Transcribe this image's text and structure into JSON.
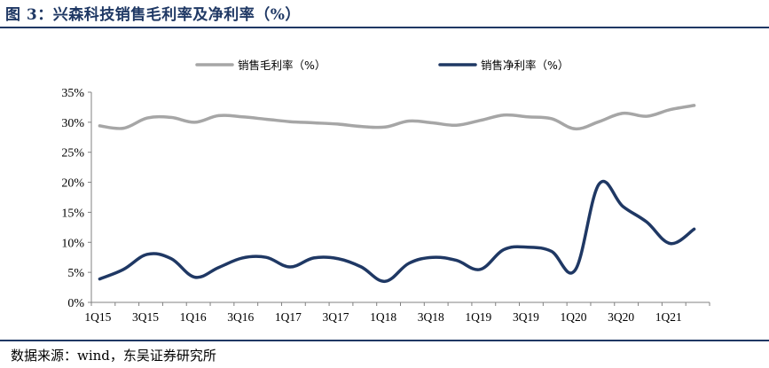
{
  "title": "图 3：兴森科技销售毛利率及净利率（%）",
  "source": "数据来源：wind，东吴证券研究所",
  "colors": {
    "gross": "#a6a6a6",
    "net": "#1f3864",
    "title": "#1f3864"
  },
  "chart_data": {
    "type": "line",
    "title": "",
    "xlabel": "",
    "ylabel": "",
    "ylim": [
      0,
      35
    ],
    "ytick_labels": [
      "0%",
      "5%",
      "10%",
      "15%",
      "20%",
      "25%",
      "30%",
      "35%"
    ],
    "categories": [
      "1Q15",
      "2Q15",
      "3Q15",
      "4Q15",
      "1Q16",
      "2Q16",
      "3Q16",
      "4Q16",
      "1Q17",
      "2Q17",
      "3Q17",
      "4Q17",
      "1Q18",
      "2Q18",
      "3Q18",
      "4Q18",
      "1Q19",
      "2Q19",
      "3Q19",
      "4Q19",
      "1Q20",
      "2Q20",
      "3Q20",
      "4Q20",
      "1Q21",
      "2Q21"
    ],
    "xtick_labels": [
      "1Q15",
      "3Q15",
      "1Q16",
      "3Q16",
      "1Q17",
      "3Q17",
      "1Q18",
      "3Q18",
      "1Q19",
      "3Q19",
      "1Q20",
      "3Q20",
      "1Q21"
    ],
    "legend_position": "top",
    "grid": false,
    "series": [
      {
        "name": "销售毛利率（%）",
        "color": "#a6a6a6",
        "values": [
          29.4,
          29.0,
          30.7,
          30.8,
          30.0,
          31.1,
          30.9,
          30.5,
          30.1,
          29.9,
          29.7,
          29.3,
          29.2,
          30.2,
          29.9,
          29.5,
          30.3,
          31.2,
          30.9,
          30.6,
          28.9,
          30.1,
          31.5,
          31.0,
          32.1,
          32.8
        ]
      },
      {
        "name": "销售净利率（%）",
        "color": "#1f3864",
        "values": [
          3.9,
          5.5,
          8.0,
          7.3,
          4.2,
          5.8,
          7.4,
          7.5,
          5.9,
          7.4,
          7.3,
          5.9,
          3.5,
          6.5,
          7.5,
          7.0,
          5.5,
          8.8,
          9.2,
          8.5,
          5.4,
          19.7,
          16.0,
          13.4,
          9.8,
          12.2
        ]
      }
    ]
  }
}
